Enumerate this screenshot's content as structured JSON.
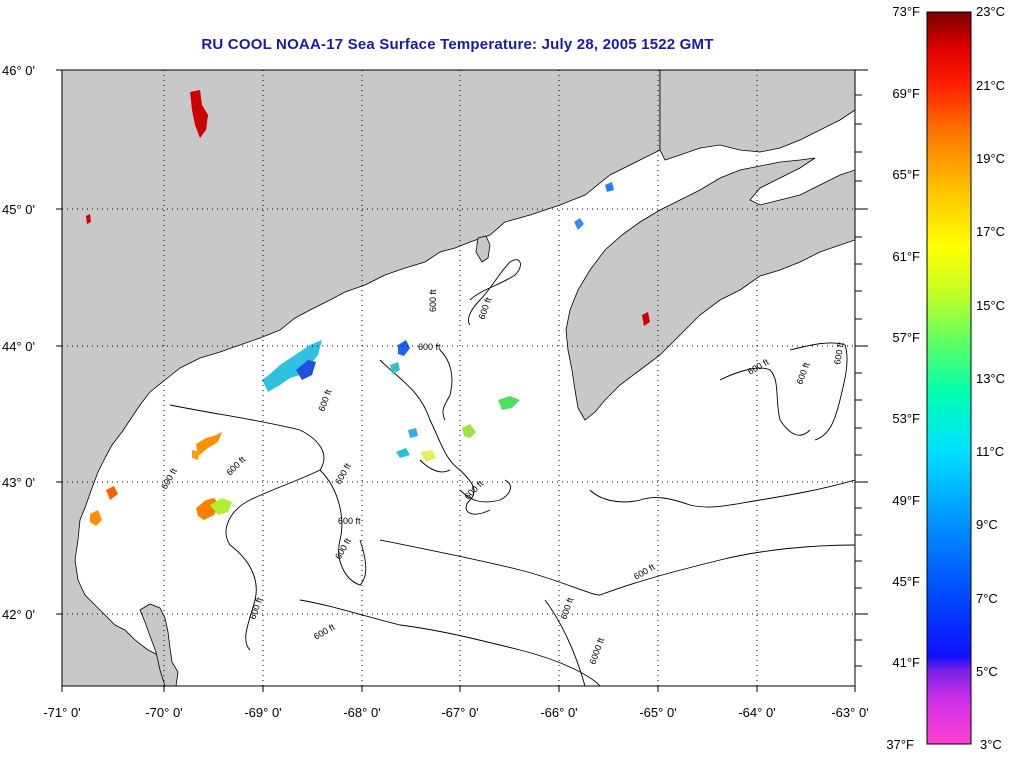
{
  "title": "RU COOL  NOAA-17  Sea Surface Temperature:  July 28, 2005 1522 GMT",
  "axes": {
    "lon_labels": [
      "-71° 0'",
      "-70° 0'",
      "-69° 0'",
      "-68° 0'",
      "-67° 0'",
      "-66° 0'",
      "-65° 0'",
      "-64° 0'",
      "-63° 0'"
    ],
    "lat_labels": [
      "46° 0'",
      "45° 0'",
      "44° 0'",
      "43° 0'",
      "42° 0'"
    ]
  },
  "contours": {
    "label": "600 ft",
    "deep_label": "6000 ft"
  },
  "colorbar": {
    "fahrenheit_labels": [
      "73°F",
      "69°F",
      "65°F",
      "61°F",
      "57°F",
      "53°F",
      "49°F",
      "45°F",
      "41°F",
      "37°F"
    ],
    "celsius_labels": [
      "23°C",
      "21°C",
      "19°C",
      "17°C",
      "15°C",
      "13°C",
      "11°C",
      "9°C",
      "7°C",
      "5°C",
      "3°C"
    ],
    "colors": [
      "#ff1fc8",
      "#a020f0",
      "#0000ff",
      "#0080ff",
      "#00e5ff",
      "#00ff80",
      "#b0ff00",
      "#ffff00",
      "#ffa000",
      "#ff4000",
      "#ff0000",
      "#8b0000"
    ]
  },
  "colors": {
    "land": "#c8c8c8",
    "water": "#ffffff",
    "title": "#1a1aa6"
  }
}
